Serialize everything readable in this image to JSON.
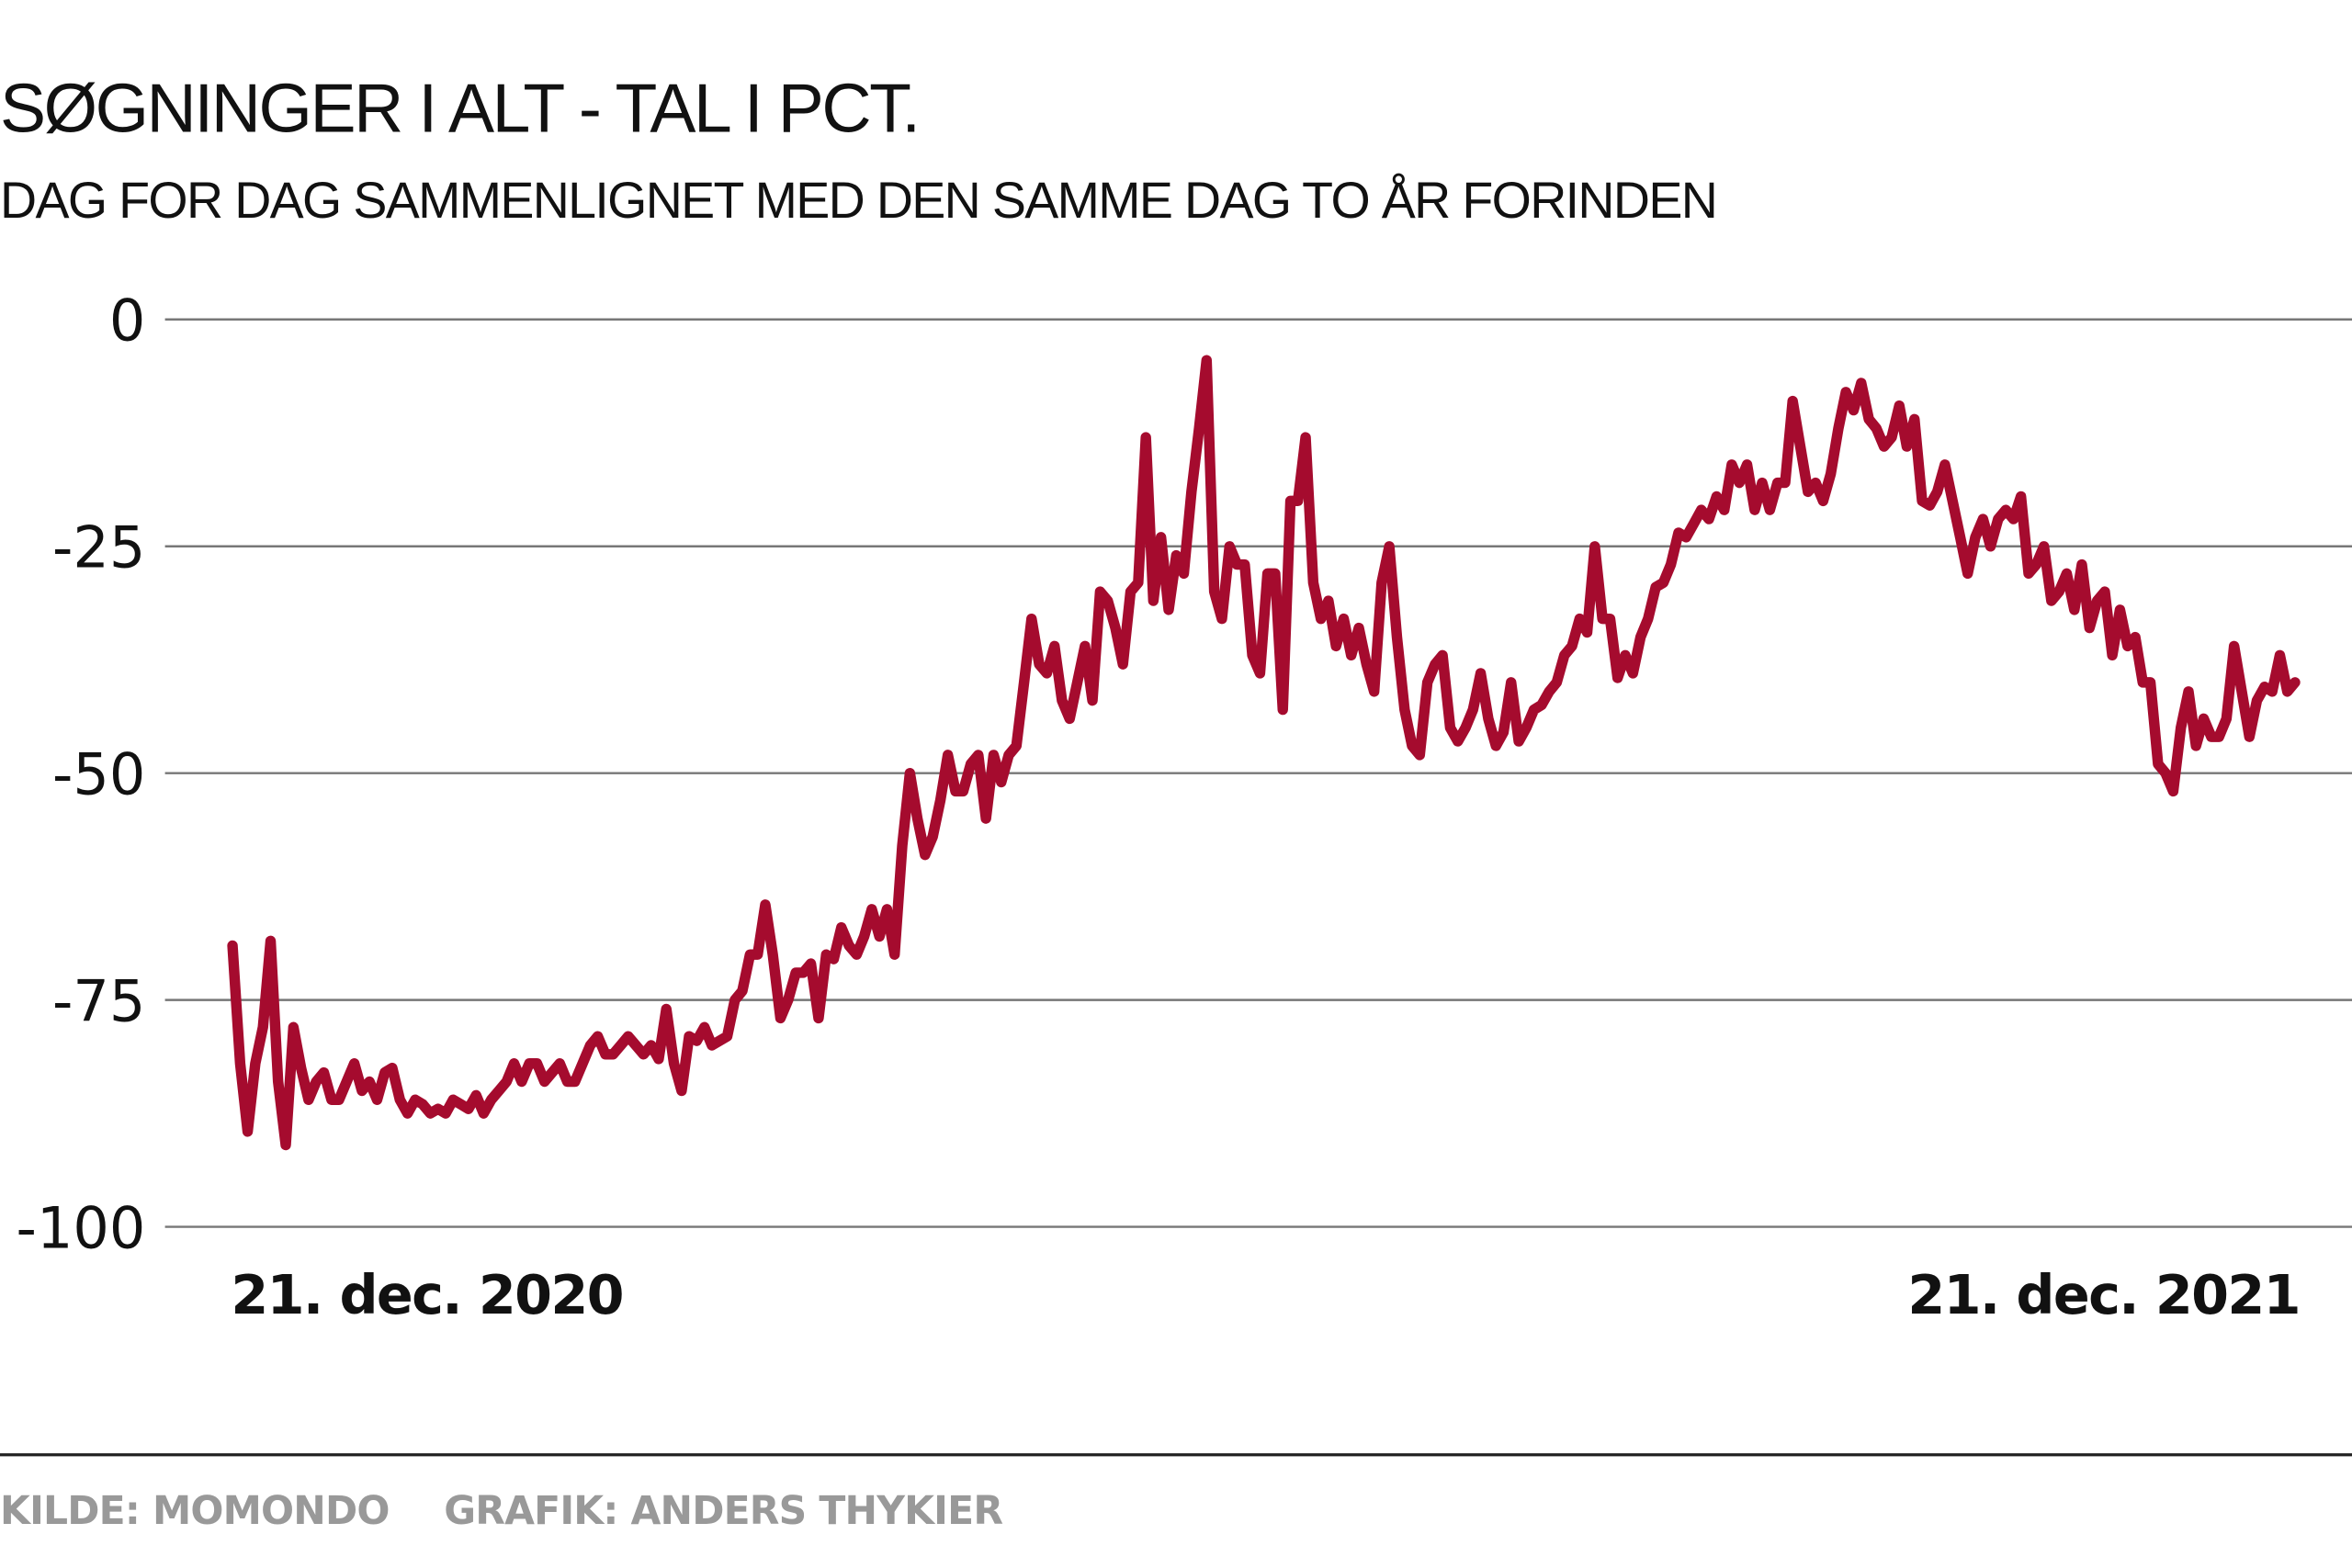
{
  "chart_data": {
    "type": "line",
    "title": "SØGNINGER I ALT - TAL I PCT.",
    "subtitle": "DAG FOR DAG SAMMENLIGNET MED DEN SAMME DAG TO ÅR FORINDEN",
    "xlabel": "",
    "ylabel": "",
    "ylim": [
      -100,
      0
    ],
    "yticks": [
      "0",
      "-25",
      "-50",
      "-75",
      "-100"
    ],
    "ytick_values": [
      0,
      -25,
      -50,
      -75,
      -100
    ],
    "xticks": [
      "21. dec. 2020",
      "21. dec. 2021"
    ],
    "grid": true,
    "line_color": "#a50b2e",
    "values": [
      -69,
      -82,
      -89.5,
      -82,
      -78,
      -68.5,
      -84,
      -91,
      -78,
      -82.5,
      -86,
      -84,
      -83,
      -86,
      -86,
      -84,
      -82,
      -85,
      -84,
      -86,
      -83,
      -82.5,
      -86,
      -87.5,
      -86,
      -86.5,
      -87.5,
      -87,
      -87.5,
      -86,
      -86.5,
      -87,
      -85.5,
      -87.5,
      -86,
      -85,
      -84,
      -82,
      -84,
      -82,
      -82,
      -84,
      -83,
      -82,
      -84,
      -84,
      -82,
      -80,
      -79,
      -81,
      -81,
      -80,
      -79,
      -80,
      -81,
      -80,
      -81.5,
      -76,
      -82,
      -85,
      -79,
      -79.5,
      -78,
      -80,
      -79.5,
      -79,
      -75,
      -74,
      -70,
      -70,
      -64.5,
      -70,
      -77,
      -75,
      -72,
      -72,
      -71,
      -77,
      -70,
      -70.5,
      -67,
      -69,
      -70,
      -68,
      -65,
      -68,
      -65,
      -70,
      -58,
      -50,
      -55,
      -59,
      -57,
      -53,
      -48,
      -52,
      -52,
      -49,
      -48,
      -55,
      -48,
      -51,
      -48,
      -47,
      -40,
      -33,
      -38,
      -39,
      -36,
      -42,
      -44,
      -40,
      -36,
      -42,
      -30,
      -31,
      -34,
      -38,
      -30,
      -29,
      -13,
      -31,
      -24,
      -32,
      -26,
      -28,
      -19,
      -12,
      -4.5,
      -30,
      -33,
      -25,
      -27,
      -27,
      -37,
      -39,
      -28,
      -28,
      -43,
      -20,
      -20,
      -13,
      -29,
      -33,
      -31,
      -36,
      -33,
      -37,
      -34,
      -38,
      -41,
      -29,
      -25,
      -35,
      -43,
      -47,
      -48,
      -40,
      -38,
      -37,
      -45,
      -46.5,
      -45,
      -43,
      -39,
      -44,
      -47,
      -45.5,
      -40,
      -46.5,
      -45,
      -43,
      -42.5,
      -41,
      -40,
      -37,
      -36,
      -33,
      -34.5,
      -25,
      -33,
      -33,
      -39.5,
      -37,
      -39,
      -35,
      -33,
      -29.5,
      -29,
      -27,
      -23.5,
      -24,
      -22.5,
      -21,
      -22,
      -19.5,
      -21,
      -16,
      -18,
      -16,
      -21,
      -18,
      -21,
      -18,
      -18,
      -9,
      -14,
      -19,
      -18,
      -20,
      -17,
      -12,
      -8,
      -10,
      -7,
      -11,
      -12,
      -14,
      -13,
      -9.5,
      -14,
      -11,
      -20,
      -20.5,
      -19,
      -16,
      -20,
      -24,
      -28,
      -24,
      -22,
      -25,
      -22,
      -21,
      -22,
      -19.5,
      -28,
      -27,
      -25,
      -31,
      -30,
      -28,
      -32,
      -27,
      -34,
      -31,
      -30,
      -37,
      -32,
      -36,
      -35,
      -40,
      -40,
      -49,
      -50,
      -52,
      -45,
      -41,
      -47,
      -44,
      -46,
      -46,
      -44,
      -36,
      -41,
      -46,
      -42,
      -40.5,
      -41,
      -37,
      -41,
      -40
    ]
  },
  "footer": {
    "source": "KILDE: MOMONDO",
    "credit": "GRAFIK: ANDERS THYKIER"
  }
}
